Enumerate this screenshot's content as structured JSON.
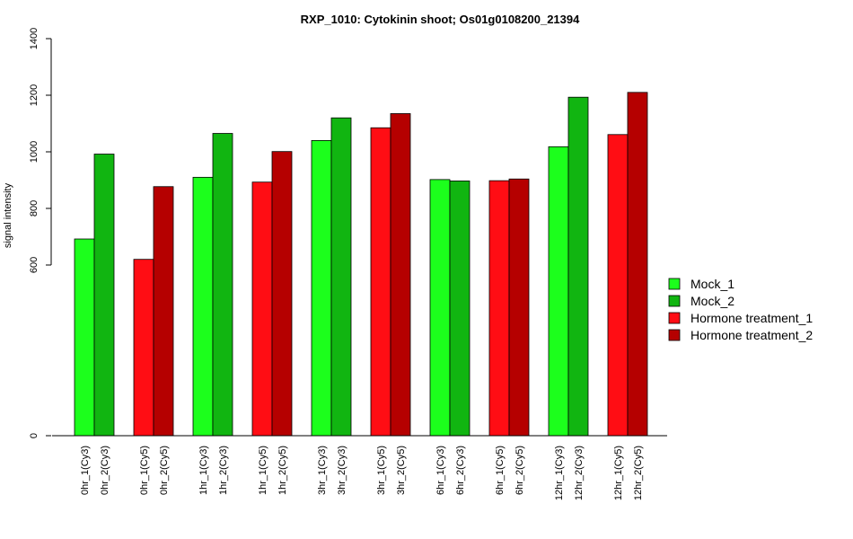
{
  "chart_data": {
    "type": "bar",
    "title": "RXP_1010: Cytokinin shoot; Os01g0108200_21394",
    "ylabel": "signal intensity",
    "xlabel": "",
    "yticks": [
      0,
      600,
      800,
      1000,
      1200,
      1400
    ],
    "categories": [
      "0hr_1(Cy3)",
      "0hr_2(Cy3)",
      "0hr_1(Cy5)",
      "0hr_2(Cy5)",
      "1hr_1(Cy3)",
      "1hr_2(Cy3)",
      "1hr_1(Cy5)",
      "1hr_2(Cy5)",
      "3hr_1(Cy3)",
      "3hr_2(Cy3)",
      "3hr_1(Cy5)",
      "3hr_2(Cy5)",
      "6hr_1(Cy3)",
      "6hr_2(Cy3)",
      "6hr_1(Cy5)",
      "6hr_2(Cy5)",
      "12hr_1(Cy3)",
      "12hr_2(Cy3)",
      "12hr_1(Cy5)",
      "12hr_2(Cy5)"
    ],
    "values": [
      692,
      992,
      620,
      877,
      910,
      1065,
      893,
      1001,
      1040,
      1120,
      1085,
      1135,
      902,
      897,
      898,
      904,
      1018,
      1193,
      1061,
      1210
    ],
    "bar_series": [
      "Mock_1",
      "Mock_2",
      "Hormone treatment_1",
      "Hormone treatment_2",
      "Mock_1",
      "Mock_2",
      "Hormone treatment_1",
      "Hormone treatment_2",
      "Mock_1",
      "Mock_2",
      "Hormone treatment_1",
      "Hormone treatment_2",
      "Mock_1",
      "Mock_2",
      "Hormone treatment_1",
      "Hormone treatment_2",
      "Mock_1",
      "Mock_2",
      "Hormone treatment_1",
      "Hormone treatment_2"
    ],
    "series": [
      {
        "name": "Mock_1",
        "color": "#1cff1c"
      },
      {
        "name": "Mock_2",
        "color": "#11b511"
      },
      {
        "name": "Hormone treatment_1",
        "color": "#ff0d14"
      },
      {
        "name": "Hormone treatment_2",
        "color": "#b50000"
      }
    ],
    "legend_position": "right",
    "grid": false,
    "y_axis_note": "broken axis: 0 at baseline, then 600 to 1400"
  }
}
